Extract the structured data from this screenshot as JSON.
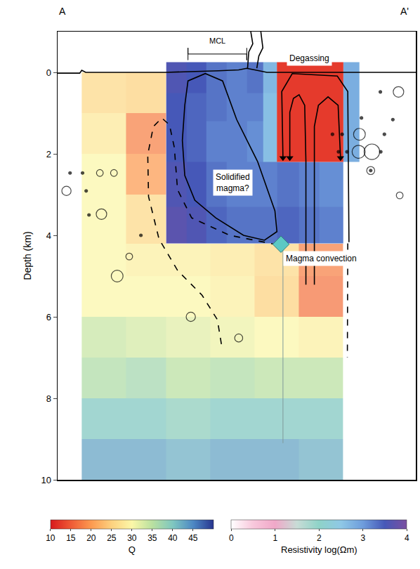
{
  "chart_data": {
    "type": "heatmap",
    "y_label": "Depth (km)",
    "end_labels": {
      "left": "A",
      "right": "A'"
    },
    "xlim": [
      0,
      8.9
    ],
    "ylim": [
      10,
      -1
    ],
    "yticks": [
      0,
      2,
      4,
      6,
      8,
      10
    ],
    "tick_labels": "y",
    "grid": false,
    "q_model": {
      "name": "Q",
      "x_edges": [
        0.6,
        1.7,
        2.7,
        3.8,
        4.9,
        6.0,
        7.1
      ],
      "y_edges": [
        0,
        1,
        2,
        3,
        4.2,
        5,
        6,
        7,
        8,
        9,
        10
      ],
      "cells": [
        [
          26,
          25,
          null,
          null,
          null,
          null
        ],
        [
          28,
          18,
          null,
          null,
          null,
          null
        ],
        [
          30,
          20,
          null,
          null,
          null,
          null
        ],
        [
          30,
          26,
          null,
          null,
          null,
          null
        ],
        [
          30,
          29,
          29,
          28,
          26,
          18
        ],
        [
          30,
          30,
          30,
          29,
          25,
          17
        ],
        [
          34,
          33,
          32,
          31,
          30,
          29
        ],
        [
          36,
          37,
          35,
          36,
          35,
          35
        ],
        [
          40,
          40,
          39,
          40,
          40,
          40
        ],
        [
          43,
          43,
          42,
          43,
          43,
          42
        ]
      ],
      "range": [
        10,
        50
      ],
      "ticks": [
        10,
        15,
        20,
        25,
        30,
        35,
        40,
        45
      ]
    },
    "resistivity_model": {
      "name": "Resistivity log(Ωm)",
      "x_edges": [
        2.7,
        3.2,
        3.7,
        4.2,
        4.7,
        5.1,
        5.45,
        6.0,
        6.5,
        7.1,
        7.5
      ],
      "y_edges": [
        -0.25,
        0.5,
        1.2,
        2.2,
        3.3,
        4.2
      ],
      "cells": [
        [
          3.6,
          3.5,
          3.3,
          3.2,
          3.3,
          2.7,
          null,
          null,
          null,
          2.8
        ],
        [
          3.5,
          3.4,
          3.3,
          3.2,
          3.2,
          2.6,
          null,
          null,
          null,
          2.8
        ],
        [
          3.5,
          3.4,
          3.2,
          3.2,
          3.1,
          2.6,
          null,
          null,
          null,
          2.8
        ],
        [
          3.6,
          3.5,
          3.3,
          3.2,
          3.2,
          3.2,
          3.3,
          3.2,
          3.1,
          null
        ],
        [
          3.7,
          3.6,
          3.4,
          3.3,
          3.3,
          3.3,
          3.4,
          3.3,
          3.2,
          null
        ]
      ],
      "range": [
        0,
        4
      ],
      "ticks": [
        0,
        1,
        2,
        3,
        4
      ]
    },
    "regions": [
      {
        "x": [
          5.45,
          7.1
        ],
        "y": [
          -0.25,
          2.2
        ],
        "color": "#e53a2c"
      }
    ],
    "curves": [
      {
        "x": [
          3.16,
          3.24,
          3.67,
          4.1,
          4.45,
          4.97,
          5.4,
          5.45,
          5.14,
          4.62,
          3.93,
          3.41,
          3.16,
          3.1,
          3.16
        ],
        "y": [
          0.81,
          0.21,
          0.03,
          0.21,
          1.16,
          2.19,
          3.4,
          3.91,
          4.12,
          4.0,
          3.57,
          3.14,
          2.53,
          1.67,
          0.81
        ],
        "line_style": "solid",
        "color": "#000000"
      },
      {
        "x": [
          4.07,
          3.97,
          3.59,
          2.98,
          2.52,
          2.26,
          2.24,
          2.38,
          2.59,
          2.78,
          2.9,
          2.98,
          3.33,
          4.28,
          5.4
        ],
        "y": [
          6.67,
          6.07,
          5.47,
          4.86,
          4.09,
          3.05,
          2.02,
          1.33,
          1.12,
          1.29,
          1.84,
          2.88,
          3.57,
          4.0,
          4.22
        ],
        "line_style": "dash",
        "color": "#000000"
      },
      {
        "x": [
          7.21,
          7.2
        ],
        "y": [
          4.2,
          7.0
        ],
        "line_style": "dash",
        "color": "#000000"
      },
      {
        "x": [
          6.17,
          6.17,
          6.14,
          6.0,
          5.86,
          5.77,
          5.77
        ],
        "y": [
          5.21,
          2.19,
          0.81,
          0.55,
          0.64,
          0.98,
          2.1
        ],
        "line_style": "solid",
        "color": "#000000",
        "marker": "arrow"
      },
      {
        "x": [
          6.38,
          6.38,
          6.48,
          6.72,
          6.97,
          7.03
        ],
        "y": [
          5.21,
          1.33,
          0.81,
          0.6,
          0.81,
          2.1
        ],
        "line_style": "solid",
        "color": "#000000",
        "marker": "arrow"
      },
      {
        "x": [
          7.24,
          7.21,
          6.95,
          5.83,
          5.57,
          5.6
        ],
        "y": [
          4.17,
          0.47,
          0.09,
          0.03,
          0.47,
          2.1
        ],
        "line_style": "solid",
        "color": "#000000",
        "marker": "arrow"
      },
      {
        "x": [
          5.6,
          5.6
        ],
        "y": [
          4.22,
          9.1
        ],
        "line_style": "solid",
        "color": "#7f9a9a"
      },
      {
        "x": [
          0,
          0.55,
          0.6,
          0.7,
          2.7,
          3.5,
          4.0,
          4.5,
          4.7,
          4.9,
          5.2,
          8.9
        ],
        "y": [
          0.02,
          0.02,
          -0.05,
          0.0,
          0.0,
          -0.02,
          -0.04,
          -0.06,
          -0.1,
          -0.06,
          0.0,
          0.0
        ],
        "line_style": "solid",
        "color": "#000000"
      },
      {
        "x": [
          4.72,
          4.75,
          4.85,
          4.8
        ],
        "y": [
          -0.1,
          -0.5,
          -0.7,
          -1.0
        ],
        "line_style": "solid",
        "color": "#000000"
      },
      {
        "x": [
          4.95,
          5.0,
          5.1,
          5.05
        ],
        "y": [
          -0.1,
          -0.4,
          -0.6,
          -1.0
        ],
        "line_style": "solid",
        "color": "#000000"
      }
    ],
    "bracket": {
      "label": "MCL",
      "x": [
        3.24,
        4.7
      ],
      "y": -0.45,
      "label_y": -0.78
    },
    "earthquakes": [
      {
        "marker": "dot",
        "x": [
          0.31,
          0.62,
          0.71,
          0.78,
          2.07,
          8.02,
          7.55,
          6.83,
          7.07,
          8.12,
          6.98,
          7.19,
          8.03,
          7.78,
          8.33
        ],
        "y": [
          2.47,
          2.47,
          2.91,
          3.5,
          4.0,
          0.48,
          1.12,
          1.52,
          1.52,
          1.52,
          1.95,
          1.95,
          1.95,
          2.41,
          1.16
        ],
        "size": [
          0,
          0,
          0,
          0,
          0,
          0,
          0,
          0,
          0,
          0,
          0,
          0,
          0,
          0,
          0
        ]
      },
      {
        "marker": "circle",
        "x": [
          1.05,
          1.4,
          0.22,
          1.09,
          1.78,
          1.48,
          3.31,
          4.5,
          8.47,
          7.5,
          7.48,
          7.81,
          7.78,
          8.5
        ],
        "y": [
          2.47,
          2.47,
          2.91,
          3.48,
          4.52,
          5.0,
          6.0,
          6.52,
          0.48,
          1.52,
          1.95,
          1.95,
          2.41,
          3.02
        ],
        "size": [
          0.4,
          0.4,
          0.8,
          1.0,
          0.4,
          1.2,
          0.8,
          0.6,
          1.0,
          1.2,
          1.4,
          1.8,
          0.6,
          0.4
        ]
      }
    ],
    "station": {
      "x": [
        5.55
      ],
      "y": [
        4.22
      ],
      "marker": "diamond",
      "color": "#5cc8c4"
    },
    "labels": [
      {
        "text": [
          "Solidified",
          "magma?"
        ],
        "x": 4.36,
        "y": 2.7,
        "color": "#ffffff"
      },
      {
        "text": "Degassing",
        "x": 6.26,
        "y": -0.34,
        "color": "#ffffff"
      },
      {
        "text": "Magma convection",
        "x": 6.55,
        "y": 4.57,
        "color": "#ffffff"
      }
    ]
  }
}
